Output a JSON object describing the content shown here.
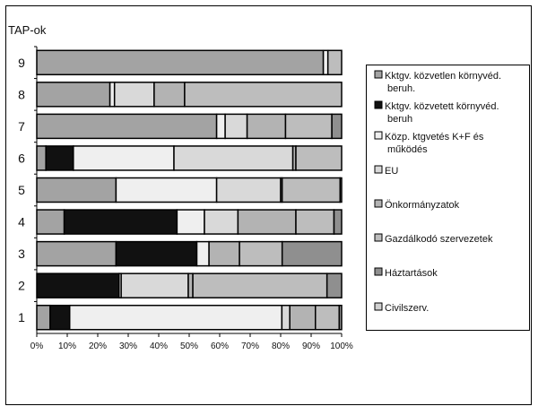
{
  "chart_data": {
    "type": "bar",
    "orientation": "horizontal",
    "stacked": "percent",
    "title": "TAP-ok",
    "xlabel": "",
    "ylabel": "TAP-ok",
    "xlim": [
      0,
      100
    ],
    "x_ticks": [
      "0%",
      "10%",
      "20%",
      "30%",
      "40%",
      "50%",
      "60%",
      "70%",
      "80%",
      "90%",
      "100%"
    ],
    "categories": [
      "9",
      "8",
      "7",
      "6",
      "5",
      "4",
      "3",
      "2",
      "1"
    ],
    "legend_position": "right",
    "series": [
      {
        "name": "Kktgv. közvetlen környvéd. beruh.",
        "color": "#a3a3a3",
        "values": [
          94,
          24,
          59,
          3,
          26,
          9,
          26,
          0,
          4.4
        ]
      },
      {
        "name": "Kktgv. közvetett környvéd. beruh",
        "color": "#111111",
        "values": [
          0,
          0,
          0,
          9,
          0,
          37,
          26.5,
          27,
          6.4
        ]
      },
      {
        "name": "Közp. ktgvetés K+F és működés",
        "color": "#efefef",
        "values": [
          1.5,
          1.5,
          2.8,
          33,
          33,
          9,
          4,
          0.7,
          69.6
        ]
      },
      {
        "name": "EU",
        "color": "#d9d9d9",
        "values": [
          0,
          13,
          7.2,
          39,
          21,
          11,
          0,
          22,
          2.6
        ]
      },
      {
        "name": "Önkormányzatok",
        "color": "#b3b3b3",
        "values": [
          0,
          10,
          12.6,
          1,
          0.5,
          19,
          10,
          1.5,
          8.4
        ]
      },
      {
        "name": "Gazdálkodó szervezetek",
        "color": "#bdbdbd",
        "values": [
          4.5,
          51.5,
          15.2,
          15,
          19,
          12.5,
          14,
          44,
          7.8
        ]
      },
      {
        "name": "Háztartások",
        "color": "#8f8f8f",
        "values": [
          0,
          0,
          3.2,
          0,
          0.5,
          2.5,
          19.5,
          4.8,
          0.8
        ]
      },
      {
        "name": "Civilszerv.",
        "color": "#d0d0d0",
        "values": [
          0,
          0,
          0,
          0,
          0,
          0,
          0,
          0,
          0
        ]
      }
    ]
  }
}
